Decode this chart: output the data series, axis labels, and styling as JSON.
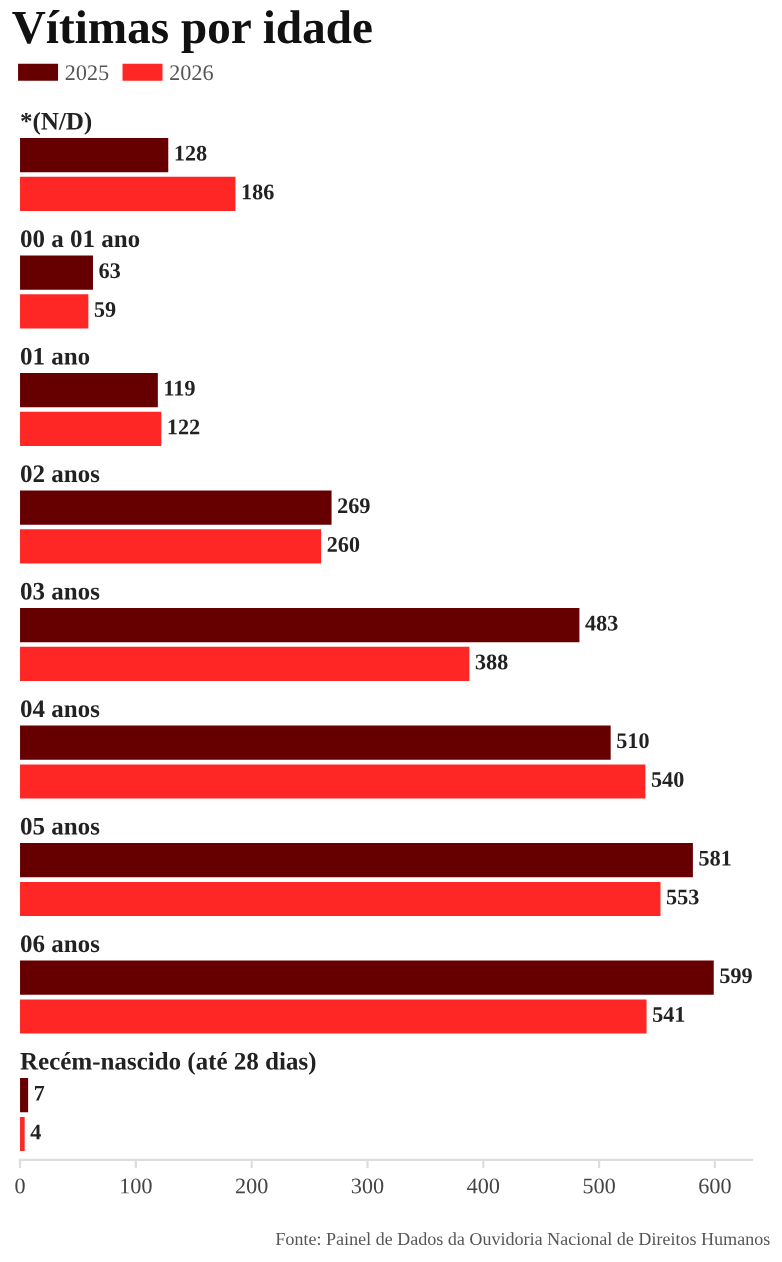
{
  "chart_data": {
    "type": "bar",
    "orientation": "horizontal",
    "title": "Vítimas por idade",
    "categories": [
      "*(N/D)",
      "00 a 01 ano",
      "01 ano",
      "02 anos",
      "03 anos",
      "04 anos",
      "05 anos",
      "06 anos",
      "Recém-nascido (até 28 dias)"
    ],
    "series": [
      {
        "name": "2025",
        "color": "#660000",
        "values": [
          128,
          63,
          119,
          269,
          483,
          510,
          581,
          599,
          7
        ]
      },
      {
        "name": "2026",
        "color": "#ff2626",
        "values": [
          186,
          59,
          122,
          260,
          388,
          540,
          553,
          541,
          4
        ]
      }
    ],
    "xlim": [
      0,
      632
    ],
    "xticks": [
      0,
      100,
      200,
      300,
      400,
      500,
      600
    ],
    "data_labels": true,
    "grid": false,
    "legend": "top left",
    "annotations": [
      "Fonte: Painel de Dados da Ouvidoria Nacional de Direitos Humanos"
    ]
  }
}
